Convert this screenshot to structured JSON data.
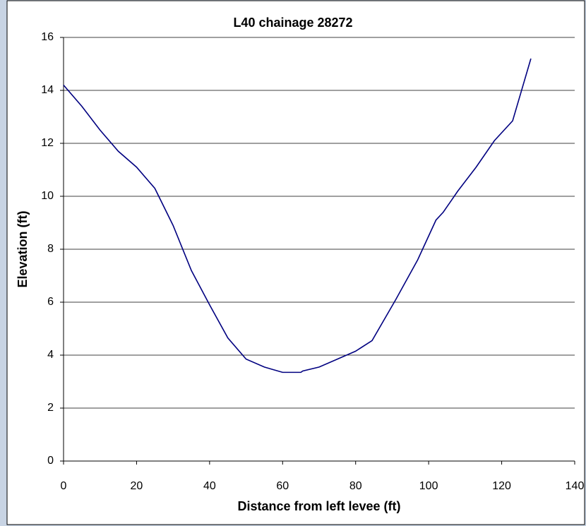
{
  "chart_data": {
    "type": "line",
    "title": "L40 chainage 28272",
    "x_label": "Distance from left levee (ft)",
    "y_label": "Elevation (ft)",
    "x": [
      0,
      5,
      10,
      15,
      20,
      25,
      30,
      35,
      40,
      45,
      50,
      55,
      60,
      65,
      65.5,
      70,
      75,
      80,
      84.5,
      91,
      97,
      102,
      104,
      108,
      113,
      118,
      123,
      128
    ],
    "series": [
      {
        "name": "Elevation",
        "color": "#000080",
        "values": [
          14.2,
          13.4,
          12.5,
          11.7,
          11.1,
          10.3,
          8.9,
          7.2,
          5.9,
          4.65,
          3.85,
          3.55,
          3.35,
          3.35,
          3.4,
          3.55,
          3.85,
          4.15,
          4.55,
          6.1,
          7.6,
          9.1,
          9.4,
          10.2,
          11.1,
          12.1,
          12.85,
          15.2
        ]
      }
    ],
    "xlim": [
      0,
      140
    ],
    "xticks": [
      0,
      20,
      40,
      60,
      80,
      100,
      120,
      140
    ],
    "ylim": [
      0,
      16
    ],
    "yticks": [
      0,
      2,
      4,
      6,
      8,
      10,
      12,
      14,
      16
    ],
    "grid": true
  }
}
